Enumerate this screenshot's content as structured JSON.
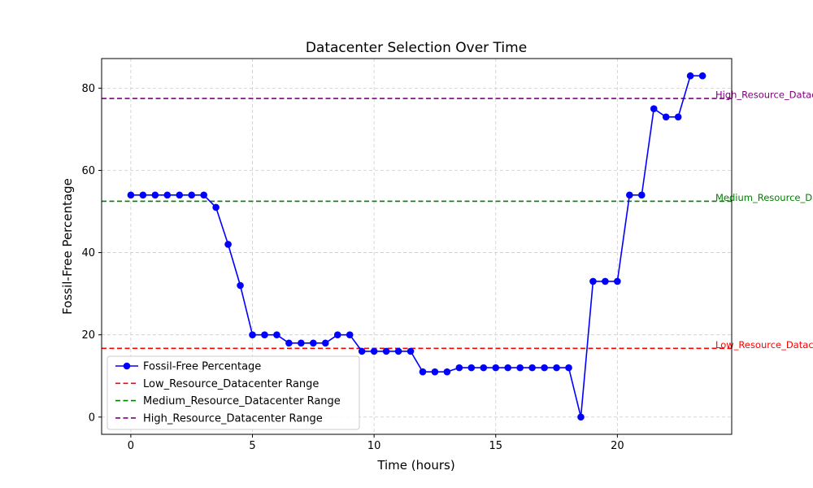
{
  "chart_data": {
    "type": "line",
    "title": "Datacenter Selection Over Time",
    "xlabel": "Time (hours)",
    "ylabel": "Fossil-Free Percentage",
    "xlim": [
      -1.2,
      24.7
    ],
    "ylim": [
      -4.2,
      87.2
    ],
    "xticks": [
      0,
      5,
      10,
      15,
      20
    ],
    "yticks": [
      0,
      20,
      40,
      60,
      80
    ],
    "grid": true,
    "legend_position": "lower-left",
    "series": [
      {
        "name": "Fossil-Free Percentage",
        "color": "#0000ff",
        "marker": "circle",
        "x": [
          0,
          0.5,
          1,
          1.5,
          2,
          2.5,
          3,
          3.5,
          4,
          4.5,
          5,
          5.5,
          6,
          6.5,
          7,
          7.5,
          8,
          8.5,
          9,
          9.5,
          10,
          10.5,
          11,
          11.5,
          12,
          12.5,
          13,
          13.5,
          14,
          14.5,
          15,
          15.5,
          16,
          16.5,
          17,
          17.5,
          18,
          18.5,
          19,
          19.5,
          20,
          20.5,
          21,
          21.5,
          22,
          22.5,
          23,
          23.5
        ],
        "y": [
          54,
          54,
          54,
          54,
          54,
          54,
          54,
          51,
          42,
          32,
          20,
          20,
          20,
          18,
          18,
          18,
          18,
          20,
          20,
          16,
          16,
          16,
          16,
          16,
          11,
          11,
          11,
          12,
          12,
          12,
          12,
          12,
          12,
          12,
          12,
          12,
          12,
          0,
          33,
          33,
          33,
          54,
          54,
          75,
          73,
          73,
          83,
          83
        ]
      }
    ],
    "reference_lines": [
      {
        "name": "Low_Resource_Datacenter Range",
        "y": 16.7,
        "color": "#ff0000",
        "label": "Low_Resource_Datacenter"
      },
      {
        "name": "Medium_Resource_Datacenter Range",
        "y": 52.5,
        "color": "#008000",
        "label": "Medium_Resource_Datacenter"
      },
      {
        "name": "High_Resource_Datacenter Range",
        "y": 77.5,
        "color": "#800080",
        "label": "High_Resource_Datacenter"
      }
    ]
  }
}
